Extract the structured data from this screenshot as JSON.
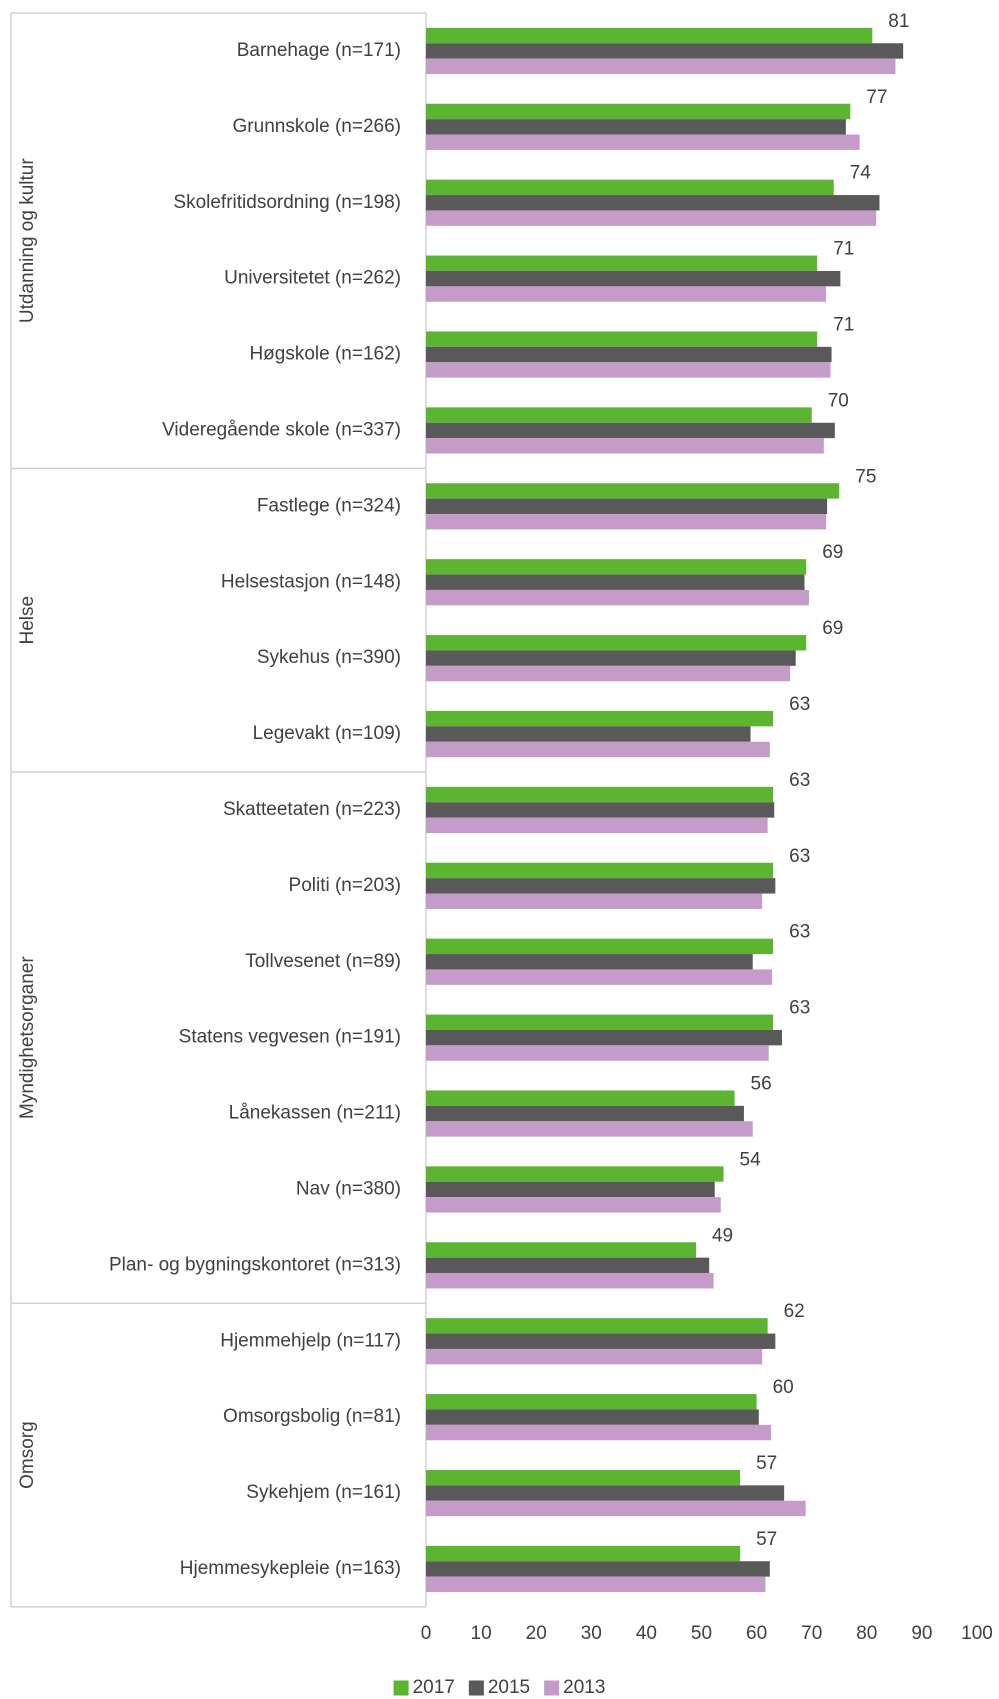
{
  "chart_data": {
    "type": "barh",
    "categories": [
      "Barnehage (n=171)",
      "Grunnskole (n=266)",
      "Skolefritidsordning (n=198)",
      "Universitetet (n=262)",
      "Høgskole (n=162)",
      "Videregående skole (n=337)",
      "Fastlege (n=324)",
      "Helsestasjon (n=148)",
      "Sykehus (n=390)",
      "Legevakt (n=109)",
      "Skatteetaten (n=223)",
      "Politi (n=203)",
      "Tollvesenet (n=89)",
      "Statens vegvesen (n=191)",
      "Lånekassen (n=211)",
      "Nav (n=380)",
      "Plan- og bygningskontoret (n=313)",
      "Hjemmehjelp (n=117)",
      "Omsorgsbolig (n=81)",
      "Sykehjem (n=161)",
      "Hjemmesykepleie (n=163)"
    ],
    "groups": [
      {
        "label": "Utdanning og kultur",
        "size": 6
      },
      {
        "label": "Helse",
        "size": 4
      },
      {
        "label": "Myndighetsorganer",
        "size": 7
      },
      {
        "label": "Omsorg",
        "size": 4
      }
    ],
    "series": [
      {
        "name": "2017",
        "color": "#5cb531",
        "labels": true,
        "values": [
          81,
          77,
          74,
          71,
          71,
          70,
          75,
          69,
          69,
          63,
          63,
          63,
          63,
          63,
          56,
          54,
          49,
          62,
          60,
          57,
          57
        ]
      },
      {
        "name": "2015",
        "color": "#595959",
        "values": [
          86.6,
          76.2,
          82.3,
          75.2,
          73.6,
          74.2,
          72.8,
          68.7,
          67.1,
          58.9,
          63.2,
          63.4,
          59.3,
          64.6,
          57.7,
          52.4,
          51.4,
          63.4,
          60.4,
          65,
          62.4
        ]
      },
      {
        "name": "2013",
        "color": "#c49bc9",
        "values": [
          85.2,
          78.7,
          81.7,
          72.6,
          73.4,
          72.2,
          72.6,
          69.5,
          66.1,
          62.4,
          62,
          61,
          62.8,
          62.2,
          59.3,
          53.5,
          52.2,
          61,
          62.6,
          68.9,
          61.6
        ]
      }
    ],
    "xlim": [
      0,
      100
    ],
    "xticks": [
      0,
      10,
      20,
      30,
      40,
      50,
      60,
      70,
      80,
      90,
      100
    ],
    "legend": "bottom"
  }
}
